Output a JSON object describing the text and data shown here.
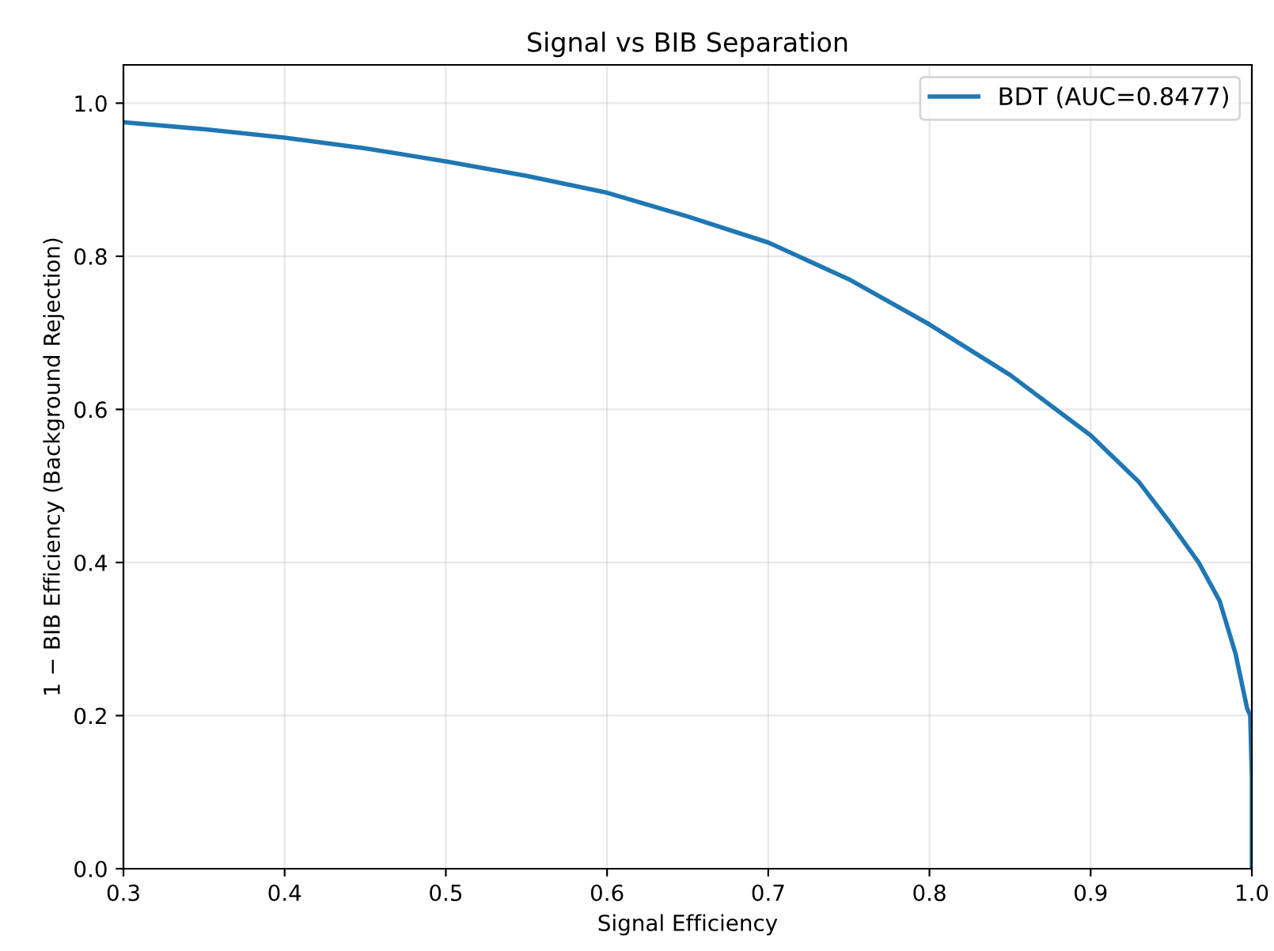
{
  "chart_data": {
    "type": "line",
    "title": "Signal vs BIB Separation",
    "xlabel": "Signal Efficiency",
    "ylabel": "1 − BIB Efficiency (Background Rejection)",
    "series": [
      {
        "name": "BDT (AUC=0.8477)",
        "color": "#1f77b4",
        "x": [
          0.3,
          0.35,
          0.4,
          0.45,
          0.5,
          0.55,
          0.6,
          0.65,
          0.7,
          0.75,
          0.8,
          0.85,
          0.9,
          0.93,
          0.95,
          0.967,
          0.98,
          0.99,
          0.997,
          0.999,
          1.0,
          1.0
        ],
        "values": [
          0.975,
          0.966,
          0.955,
          0.941,
          0.924,
          0.905,
          0.883,
          0.852,
          0.818,
          0.77,
          0.711,
          0.645,
          0.566,
          0.505,
          0.45,
          0.4,
          0.35,
          0.28,
          0.21,
          0.2,
          0.12,
          0.0
        ]
      }
    ],
    "xlim": [
      0.3,
      1.0
    ],
    "ylim": [
      0.0,
      1.05
    ],
    "xticks": [
      0.3,
      0.4,
      0.5,
      0.6,
      0.7,
      0.8,
      0.9,
      {
        "value": 1,
        "label": "1.0"
      }
    ],
    "yticks": [
      {
        "value": 0,
        "label": "0.0"
      },
      0.2,
      0.4,
      0.6,
      0.8,
      {
        "value": 1,
        "label": "1.0"
      }
    ],
    "grid": true,
    "legend": "upper right",
    "line_style": "solid",
    "marker": "none"
  }
}
